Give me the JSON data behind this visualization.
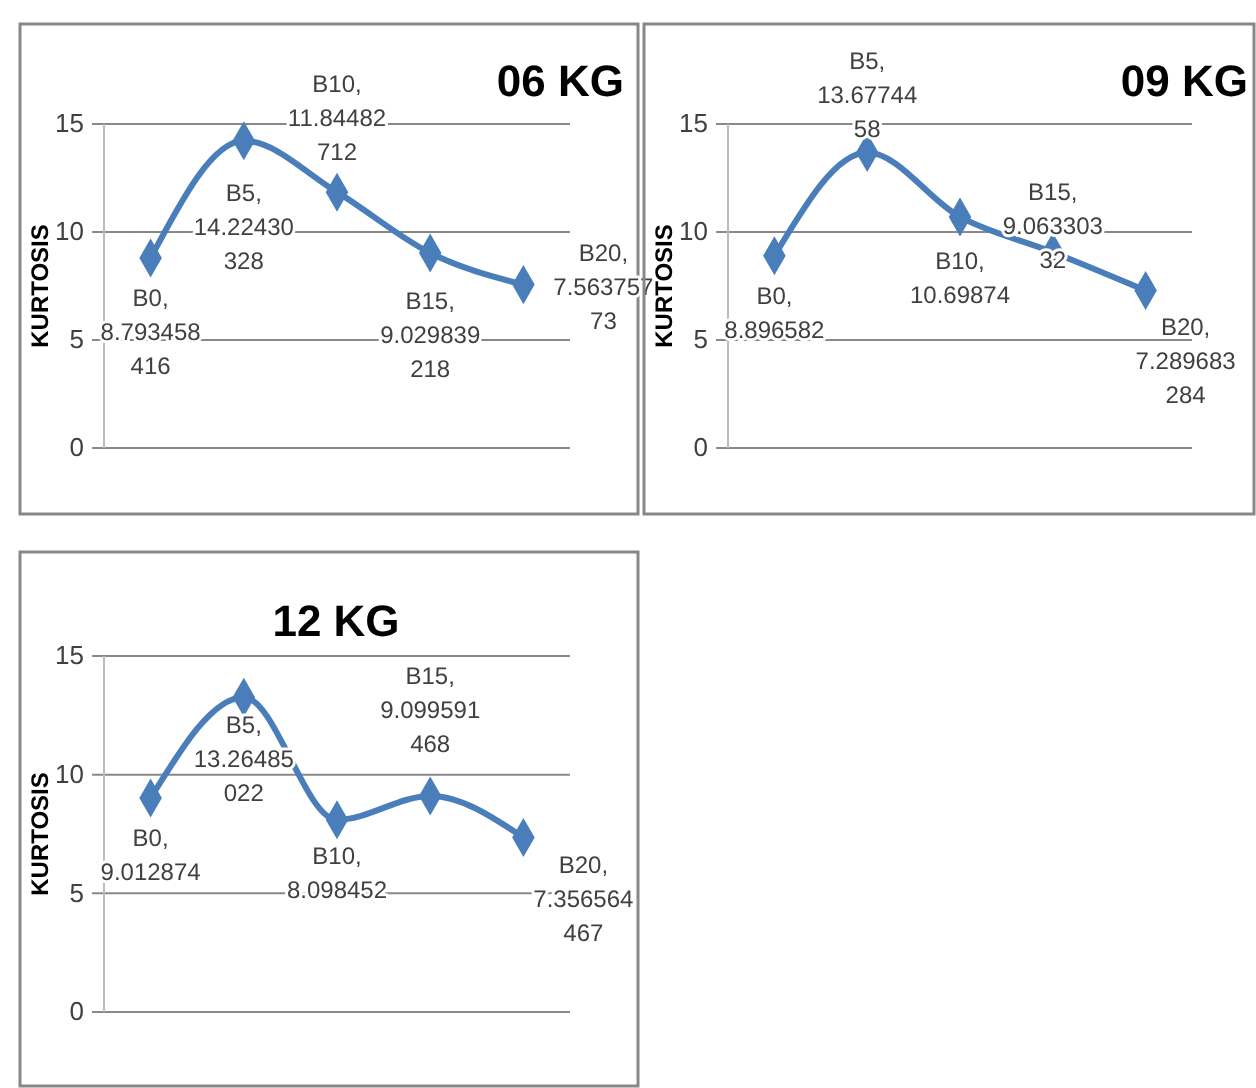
{
  "chart_data": [
    {
      "type": "line",
      "title": "06 KG",
      "ylabel": "KURTOSIS",
      "categories": [
        null,
        null,
        null,
        null,
        null
      ],
      "ylim": [
        0,
        15
      ],
      "yticks": [
        0,
        5,
        10,
        15
      ],
      "grid": "y",
      "tick_labels": "y",
      "marker": "diamond",
      "line_style": "solid",
      "series": [
        {
          "color": "#4a7ebb",
          "values": [
            8.793458416,
            14.22430328,
            11.84482712,
            9.029839218,
            7.56375773
          ],
          "value_labels": [
            "B0, 8.793458416",
            "B5, 14.22430328",
            "B10, 11.84482712",
            "B15, 9.029839218",
            "B20, 7.56375773"
          ]
        }
      ]
    },
    {
      "type": "line",
      "title": "09 KG",
      "ylabel": "KURTOSIS",
      "categories": [
        null,
        null,
        null,
        null,
        null
      ],
      "ylim": [
        0,
        15
      ],
      "yticks": [
        0,
        5,
        10,
        15
      ],
      "grid": "y",
      "tick_labels": "y",
      "marker": "diamond",
      "line_style": "solid",
      "series": [
        {
          "color": "#4a7ebb",
          "values": [
            8.896582,
            13.6774458,
            10.69874,
            9.06330332,
            7.289683284
          ],
          "value_labels": [
            "B0, 8.896582",
            "B5, 13.6774458",
            "B10, 10.69874",
            "B15, 9.06330332",
            "B20, 7.289683284"
          ]
        }
      ]
    },
    {
      "type": "line",
      "title": "12 KG",
      "ylabel": "KURTOSIS",
      "categories": [
        null,
        null,
        null,
        null,
        null
      ],
      "ylim": [
        0,
        15
      ],
      "yticks": [
        0,
        5,
        10,
        15
      ],
      "grid": "y",
      "tick_labels": "y",
      "marker": "diamond",
      "line_style": "solid",
      "series": [
        {
          "color": "#4a7ebb",
          "values": [
            9.012874,
            13.26485022,
            8.098452,
            9.099591468,
            7.356564467
          ],
          "value_labels": [
            "B0, 9.012874",
            "B5, 13.26485022",
            "B10, 8.098452",
            "B15, 9.099591468",
            "B20, 7.356564467"
          ]
        }
      ]
    }
  ]
}
